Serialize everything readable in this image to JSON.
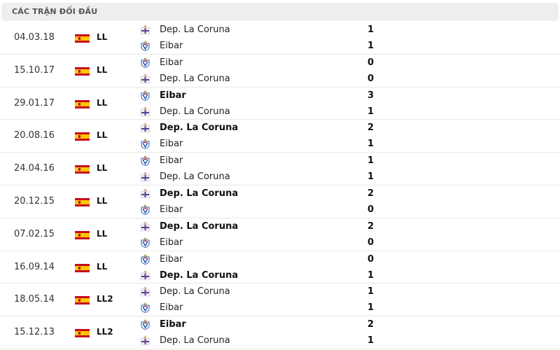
{
  "header": {
    "title": "CÁC TRẬN ĐỐI ĐẦU"
  },
  "matches": [
    {
      "date": "04.03.18",
      "league": "LL",
      "home": "Dep. La Coruna",
      "home_score": "1",
      "away": "Eibar",
      "away_score": "1",
      "winner": ""
    },
    {
      "date": "15.10.17",
      "league": "LL",
      "home": "Eibar",
      "home_score": "0",
      "away": "Dep. La Coruna",
      "away_score": "0",
      "winner": ""
    },
    {
      "date": "29.01.17",
      "league": "LL",
      "home": "Eibar",
      "home_score": "3",
      "away": "Dep. La Coruna",
      "away_score": "1",
      "winner": "home"
    },
    {
      "date": "20.08.16",
      "league": "LL",
      "home": "Dep. La Coruna",
      "home_score": "2",
      "away": "Eibar",
      "away_score": "1",
      "winner": "home"
    },
    {
      "date": "24.04.16",
      "league": "LL",
      "home": "Eibar",
      "home_score": "1",
      "away": "Dep. La Coruna",
      "away_score": "1",
      "winner": ""
    },
    {
      "date": "20.12.15",
      "league": "LL",
      "home": "Dep. La Coruna",
      "home_score": "2",
      "away": "Eibar",
      "away_score": "0",
      "winner": "home"
    },
    {
      "date": "07.02.15",
      "league": "LL",
      "home": "Dep. La Coruna",
      "home_score": "2",
      "away": "Eibar",
      "away_score": "0",
      "winner": "home"
    },
    {
      "date": "16.09.14",
      "league": "LL",
      "home": "Eibar",
      "home_score": "0",
      "away": "Dep. La Coruna",
      "away_score": "1",
      "winner": "away"
    },
    {
      "date": "18.05.14",
      "league": "LL2",
      "home": "Dep. La Coruna",
      "home_score": "1",
      "away": "Eibar",
      "away_score": "1",
      "winner": ""
    },
    {
      "date": "15.12.13",
      "league": "LL2",
      "home": "Eibar",
      "home_score": "2",
      "away": "Dep. La Coruna",
      "away_score": "1",
      "winner": "home"
    }
  ],
  "icons": {
    "flag": "spain-flag-icon",
    "coruna": "deportivo-crest-icon",
    "eibar": "eibar-crest-icon"
  }
}
